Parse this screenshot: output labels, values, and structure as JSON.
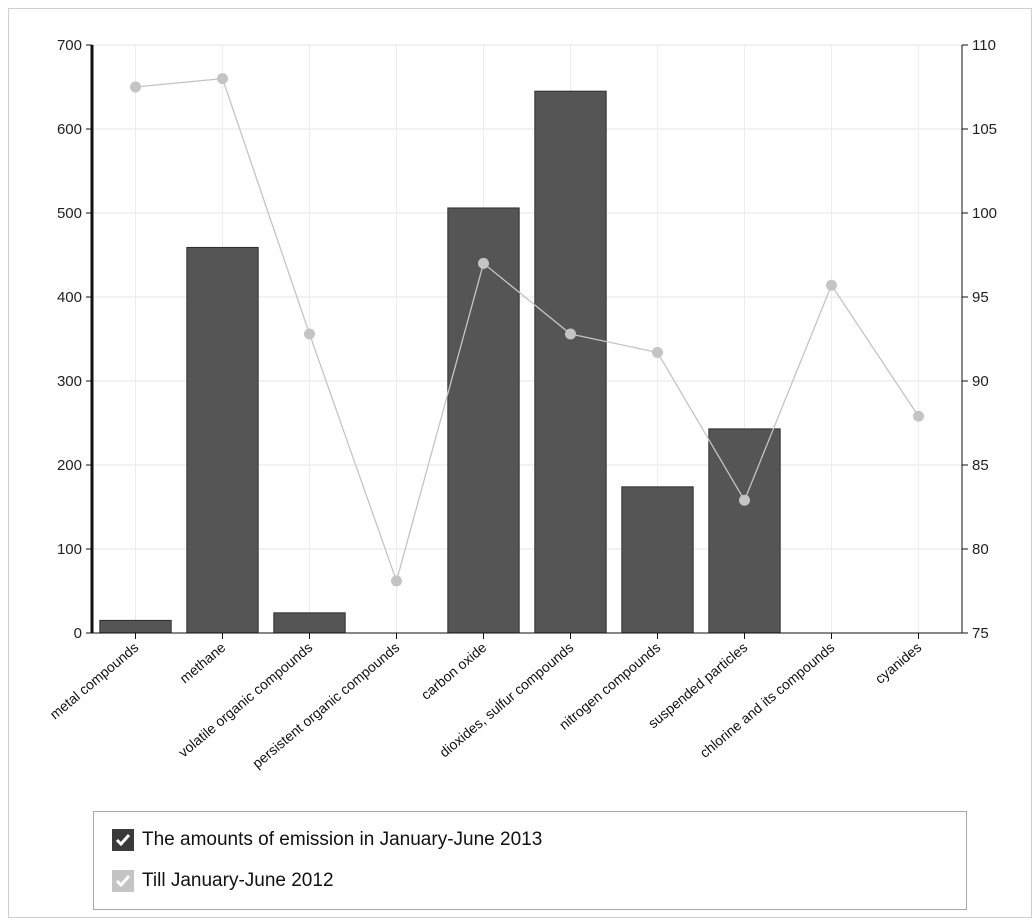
{
  "chart_data": {
    "type": "bar",
    "categories": [
      "metal compounds",
      "methane",
      "volatile organic compounds",
      "persistent organic compounds",
      "carbon oxide",
      "dioxides, sulfur compounds",
      "nitrogen compounds",
      "suspended particles",
      "chlorine and its compounds",
      "cyanides"
    ],
    "series": [
      {
        "name": "The amounts of emission in January-June 2013",
        "type": "bar",
        "axis": "left",
        "color": "#555555",
        "values": [
          15,
          459,
          24,
          0,
          506,
          645,
          174,
          243,
          0,
          0
        ]
      },
      {
        "name": "Till January-June 2012",
        "type": "line",
        "axis": "right",
        "color": "#c4c4c4",
        "values": [
          107.5,
          108,
          92.8,
          78.1,
          97,
          92.8,
          91.7,
          82.9,
          95.7,
          87.9
        ]
      }
    ],
    "y_left": {
      "min": 0,
      "max": 700,
      "ticks": [
        0,
        100,
        200,
        300,
        400,
        500,
        600,
        700
      ]
    },
    "y_right": {
      "min": 75,
      "max": 110,
      "ticks": [
        75,
        80,
        85,
        90,
        95,
        100,
        105,
        110
      ]
    },
    "grid": true,
    "legend_position": "bottom"
  },
  "legend": {
    "items": [
      {
        "label": "The amounts of emission in January-June 2013",
        "box_color": "#3a3a3a"
      },
      {
        "label": "Till January-June 2012",
        "box_color": "#c4c4c4"
      }
    ]
  }
}
